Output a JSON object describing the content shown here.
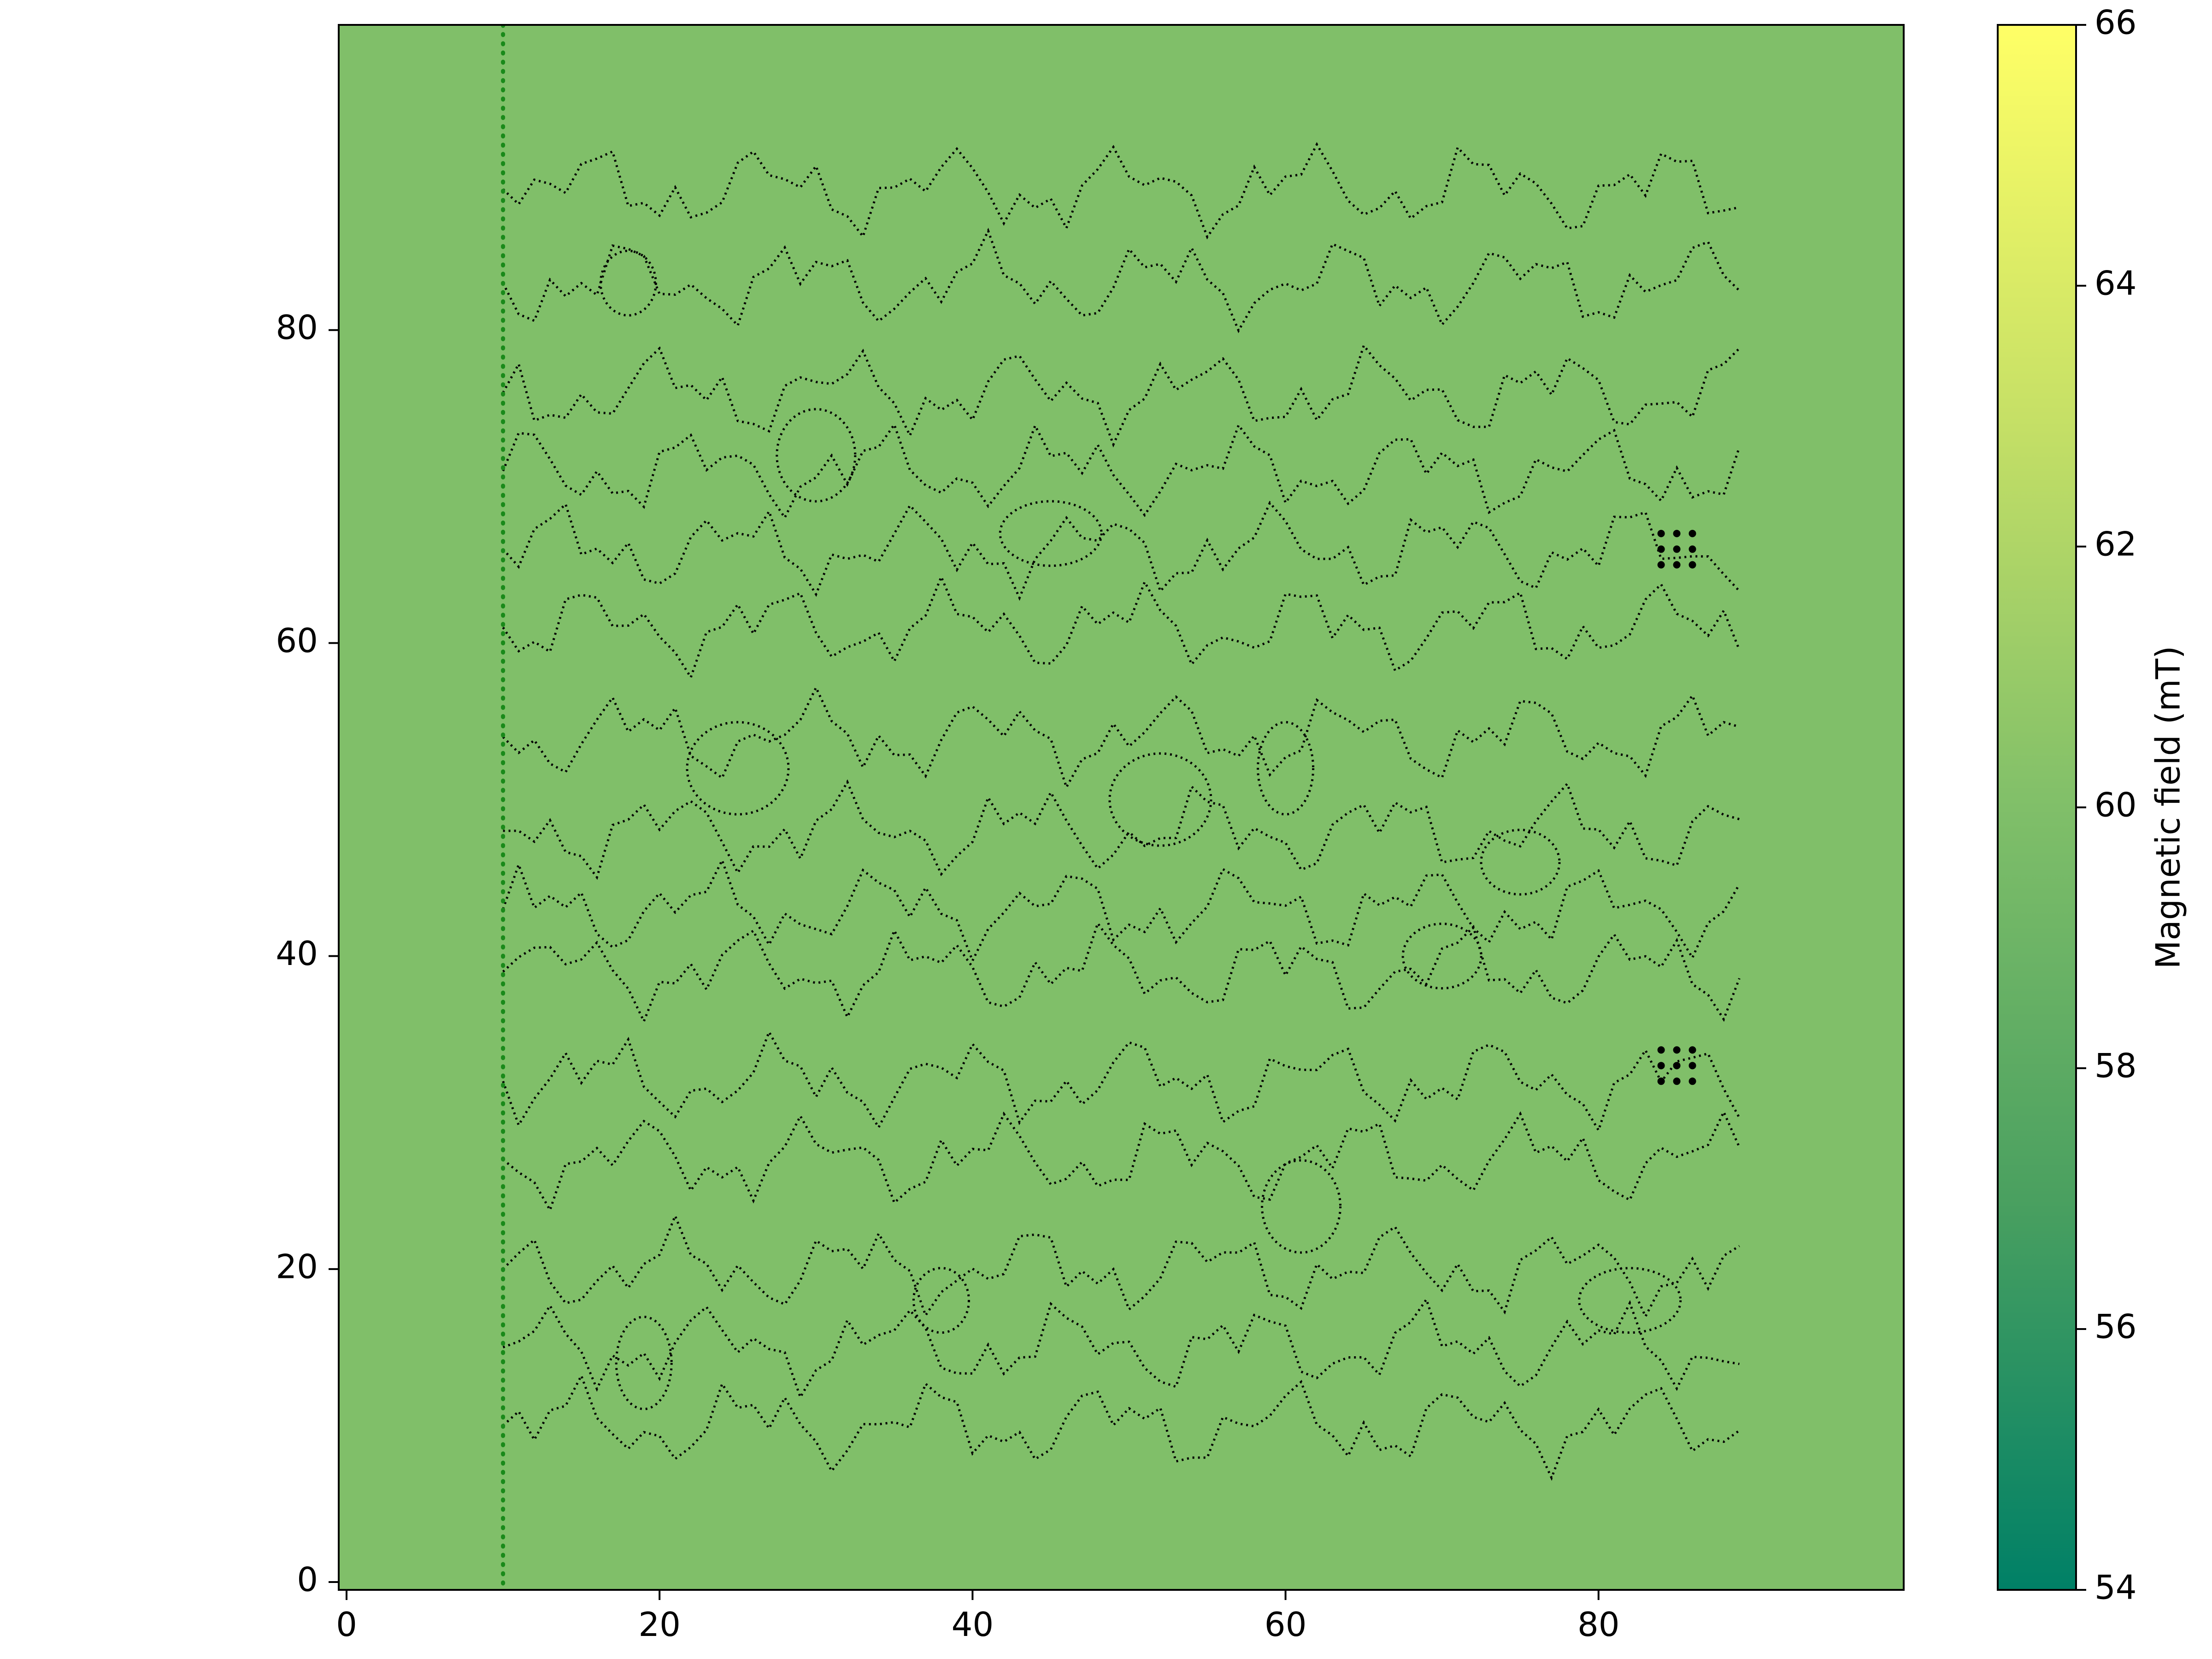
{
  "chart_data": {
    "type": "heatmap",
    "title": "",
    "xlabel": "",
    "ylabel": "",
    "xlim": [
      -0.5,
      99.5
    ],
    "ylim": [
      -0.5,
      99.5
    ],
    "x_ticks": [
      "0",
      "20",
      "40",
      "60",
      "80"
    ],
    "y_ticks": [
      "0",
      "20",
      "40",
      "60",
      "80"
    ],
    "x_tick_values": [
      0,
      20,
      40,
      60,
      80
    ],
    "y_tick_values": [
      0,
      20,
      40,
      60,
      80
    ],
    "field_value_uniform": 60,
    "field_color": "#80bf69",
    "colorbar": {
      "label": "Magnetic field (mT)",
      "min": 54,
      "max": 66,
      "ticks": [
        "54",
        "56",
        "58",
        "60",
        "62",
        "64",
        "66"
      ],
      "tick_values": [
        54,
        56,
        58,
        60,
        62,
        64,
        66
      ],
      "colormap": [
        "#008066",
        "#4aa060",
        "#80bf69",
        "#c6e066",
        "#ffff66"
      ]
    },
    "vertical_line": {
      "x": 10,
      "style": "dotted",
      "color": "#1a8a1a"
    },
    "contour_band_y": [
      10,
      15,
      20,
      27,
      32,
      39,
      43,
      48,
      54,
      61,
      66,
      71,
      76,
      83,
      89
    ],
    "contour_x_range": [
      10,
      89
    ],
    "dot_clusters": [
      {
        "x": [
          84,
          85,
          86
        ],
        "y": [
          65,
          66,
          67
        ]
      },
      {
        "x": [
          84,
          85,
          86
        ],
        "y": [
          32,
          33,
          34
        ]
      }
    ],
    "colors": {
      "contour": "#000000",
      "axis": "#000000",
      "background": "#ffffff"
    }
  }
}
